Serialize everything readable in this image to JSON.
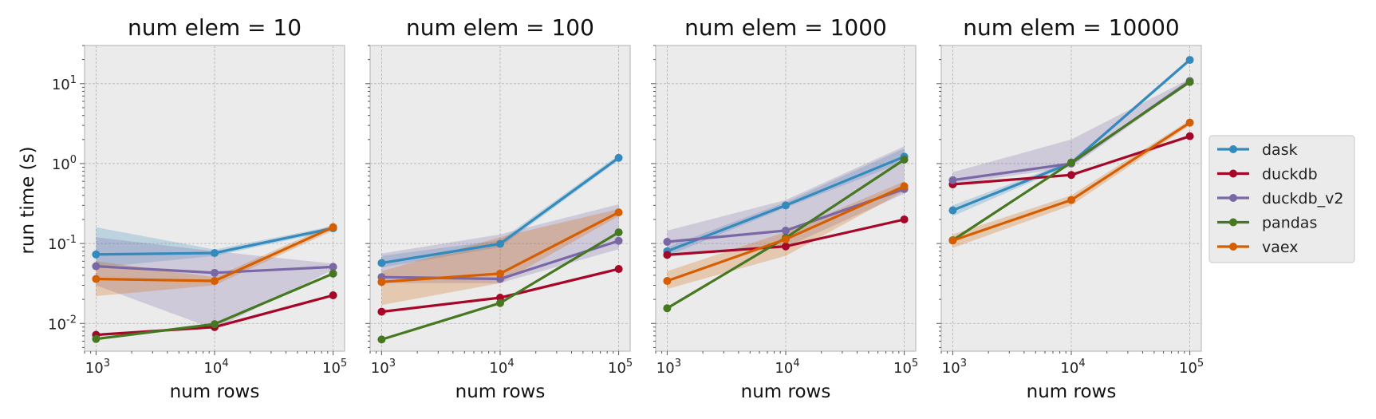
{
  "chart_data": {
    "type": "line",
    "ylabel": "run time (s)",
    "xlabel": "num rows",
    "x": [
      1000,
      10000,
      100000
    ],
    "x_tick_labels": [
      {
        "base": "10",
        "exp": "3"
      },
      {
        "base": "10",
        "exp": "4"
      },
      {
        "base": "10",
        "exp": "5"
      }
    ],
    "y_tick_labels": [
      {
        "base": "10",
        "exp": "-2"
      },
      {
        "base": "10",
        "exp": "-1"
      },
      {
        "base": "10",
        "exp": "0"
      },
      {
        "base": "10",
        "exp": "1"
      }
    ],
    "y_tick_values": [
      0.01,
      0.1,
      1,
      10
    ],
    "xscale": "log",
    "yscale": "log",
    "xlim": [
      800,
      125000
    ],
    "ylim": [
      0.0045,
      30
    ],
    "grid": true,
    "legend_position": "right, outside",
    "shared_y": true,
    "series_names": [
      "dask",
      "duckdb",
      "duckdb_v2",
      "pandas",
      "vaex"
    ],
    "colors": {
      "dask": "#348abd",
      "duckdb": "#a60628",
      "duckdb_v2": "#7a68a6",
      "pandas": "#467821",
      "vaex": "#d55e00"
    },
    "panels": [
      {
        "title": "num elem = 10",
        "series": [
          {
            "name": "dask",
            "values": [
              0.073,
              0.076,
              0.155
            ],
            "band_low": [
              0.05,
              0.07,
              0.145
            ],
            "band_high": [
              0.16,
              0.084,
              0.165
            ]
          },
          {
            "name": "duckdb",
            "values": [
              0.0072,
              0.009,
              0.0225
            ]
          },
          {
            "name": "duckdb_v2",
            "values": [
              0.052,
              0.043,
              0.051
            ],
            "band_low": [
              0.03,
              0.0085,
              0.047
            ],
            "band_high": [
              0.12,
              0.08,
              0.056
            ]
          },
          {
            "name": "pandas",
            "values": [
              0.0064,
              0.0098,
              0.042
            ]
          },
          {
            "name": "vaex",
            "values": [
              0.036,
              0.034,
              0.16
            ],
            "band_low": [
              0.022,
              0.03,
              0.145
            ],
            "band_high": [
              0.06,
              0.038,
              0.175
            ]
          }
        ]
      },
      {
        "title": "num elem = 100",
        "series": [
          {
            "name": "dask",
            "values": [
              0.057,
              0.099,
              1.18
            ],
            "band_low": [
              0.05,
              0.09,
              1.1
            ],
            "band_high": [
              0.07,
              0.11,
              1.28
            ]
          },
          {
            "name": "duckdb",
            "values": [
              0.014,
              0.021,
              0.048
            ]
          },
          {
            "name": "duckdb_v2",
            "values": [
              0.038,
              0.036,
              0.108
            ],
            "band_low": [
              0.032,
              0.032,
              0.085
            ],
            "band_high": [
              0.075,
              0.13,
              0.31
            ]
          },
          {
            "name": "pandas",
            "values": [
              0.0063,
              0.018,
              0.138
            ]
          },
          {
            "name": "vaex",
            "values": [
              0.033,
              0.042,
              0.245
            ],
            "band_low": [
              0.017,
              0.032,
              0.22
            ],
            "band_high": [
              0.045,
              0.12,
              0.27
            ]
          }
        ]
      },
      {
        "title": "num elem = 1000",
        "series": [
          {
            "name": "dask",
            "values": [
              0.08,
              0.3,
              1.22
            ],
            "band_low": [
              0.07,
              0.28,
              1.05
            ],
            "band_high": [
              0.09,
              0.33,
              1.55
            ]
          },
          {
            "name": "duckdb",
            "values": [
              0.072,
              0.092,
              0.2
            ]
          },
          {
            "name": "duckdb_v2",
            "values": [
              0.105,
              0.145,
              0.48
            ],
            "band_low": [
              0.07,
              0.09,
              0.42
            ],
            "band_high": [
              0.145,
              0.35,
              1.65
            ]
          },
          {
            "name": "pandas",
            "values": [
              0.0155,
              0.118,
              1.12
            ]
          },
          {
            "name": "vaex",
            "values": [
              0.034,
              0.113,
              0.52
            ],
            "band_low": [
              0.027,
              0.07,
              0.45
            ],
            "band_high": [
              0.045,
              0.14,
              0.6
            ]
          }
        ]
      },
      {
        "title": "num elem = 10000",
        "series": [
          {
            "name": "dask",
            "values": [
              0.26,
              1.02,
              19.8
            ],
            "band_low": [
              0.22,
              0.97,
              18.8
            ],
            "band_high": [
              0.3,
              1.08,
              21.0
            ]
          },
          {
            "name": "duckdb",
            "values": [
              0.55,
              0.72,
              2.2
            ]
          },
          {
            "name": "duckdb_v2",
            "values": [
              0.62,
              1.0,
              10.8
            ],
            "band_low": [
              0.55,
              0.9,
              10.2
            ],
            "band_high": [
              0.78,
              2.0,
              11.5
            ]
          },
          {
            "name": "pandas",
            "values": [
              0.11,
              1.03,
              10.5
            ]
          },
          {
            "name": "vaex",
            "values": [
              0.109,
              0.35,
              3.25
            ],
            "band_low": [
              0.088,
              0.3,
              3.0
            ],
            "band_high": [
              0.13,
              0.4,
              3.5
            ]
          }
        ]
      }
    ]
  }
}
